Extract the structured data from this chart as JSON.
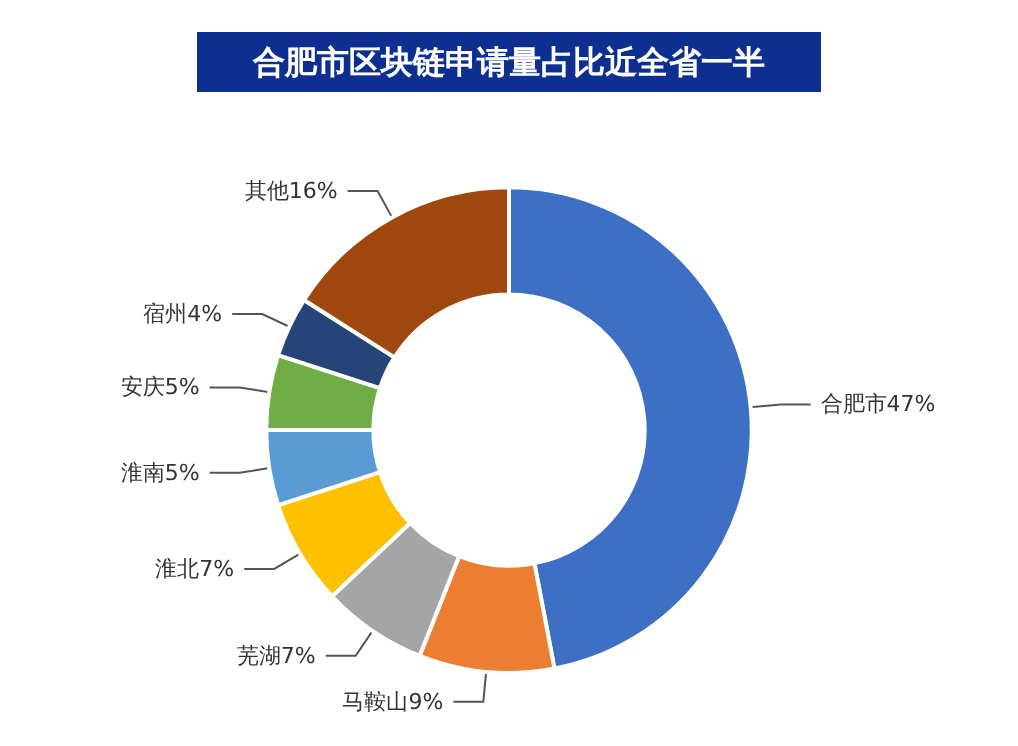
{
  "chart_data": {
    "type": "donut",
    "title": "合肥市区块链申请量占比近全省一半",
    "categories": [
      "合肥市",
      "马鞍山",
      "芜湖",
      "淮北",
      "淮南",
      "安庆",
      "宿州",
      "其他"
    ],
    "values": [
      47,
      9,
      7,
      7,
      5,
      5,
      4,
      16
    ],
    "colors": [
      "#3d6fc4",
      "#ed7d31",
      "#a5a5a5",
      "#ffc000",
      "#5b9bd5",
      "#70ad47",
      "#264478",
      "#9e480e"
    ],
    "value_labels": [
      "47%",
      "9%",
      "7%",
      "7%",
      "5%",
      "5%",
      "4%",
      "16%"
    ],
    "legend": false
  }
}
